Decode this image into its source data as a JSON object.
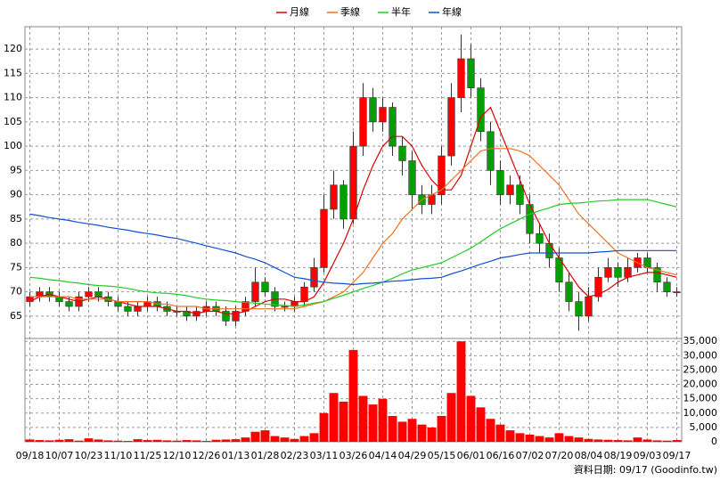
{
  "chart_data": [
    {
      "type": "candlestick",
      "categories": [
        "09/18",
        null,
        null,
        "10/07",
        null,
        null,
        "10/23",
        null,
        null,
        "11/10",
        null,
        null,
        "11/25",
        null,
        null,
        "12/10",
        null,
        null,
        "12/26",
        null,
        null,
        "01/13",
        null,
        null,
        "01/28",
        null,
        null,
        "02/23",
        null,
        null,
        "03/11",
        null,
        null,
        "03/26",
        null,
        null,
        "04/14",
        null,
        null,
        "04/29",
        null,
        null,
        "05/15",
        null,
        null,
        "06/01",
        null,
        null,
        "06/16",
        null,
        null,
        "07/02",
        null,
        null,
        "07/20",
        null,
        null,
        "08/04",
        null,
        null,
        "08/19",
        null,
        null,
        "09/03",
        null,
        null,
        "09/17"
      ],
      "open": [
        68,
        69,
        70,
        69,
        68,
        67,
        69,
        70,
        69,
        68,
        67,
        66,
        67,
        68,
        67,
        66,
        66,
        65,
        66,
        67,
        66,
        64,
        66,
        68,
        72,
        70,
        67,
        67,
        68,
        71,
        75,
        87,
        92,
        85,
        100,
        110,
        105,
        108,
        100,
        97,
        90,
        88,
        90,
        98,
        110,
        118,
        112,
        103,
        95,
        90,
        92,
        88,
        82,
        80,
        77,
        72,
        68,
        65,
        69,
        73,
        75,
        73,
        75,
        77,
        75,
        72,
        70
      ],
      "high": [
        70,
        71,
        71,
        70,
        69,
        70,
        71,
        71,
        70,
        69,
        68,
        68,
        69,
        69,
        68,
        67,
        67,
        67,
        68,
        68,
        67,
        67,
        69,
        75,
        73,
        71,
        68,
        69,
        72,
        77,
        90,
        95,
        93,
        103,
        113,
        112,
        110,
        109,
        102,
        99,
        92,
        92,
        100,
        113,
        123,
        121,
        114,
        105,
        97,
        94,
        94,
        90,
        84,
        82,
        79,
        74,
        70,
        71,
        75,
        77,
        76,
        77,
        78,
        78,
        76,
        73,
        71
      ],
      "low": [
        67,
        68,
        68,
        67,
        66,
        66,
        68,
        68,
        67,
        66,
        65,
        65,
        66,
        66,
        65,
        65,
        64,
        64,
        65,
        65,
        63,
        63,
        65,
        67,
        69,
        66,
        66,
        66,
        67,
        70,
        74,
        85,
        83,
        84,
        98,
        103,
        103,
        98,
        94,
        87,
        86,
        86,
        88,
        96,
        107,
        110,
        101,
        92,
        88,
        88,
        86,
        80,
        78,
        75,
        70,
        66,
        62,
        64,
        68,
        72,
        71,
        72,
        74,
        74,
        70,
        69,
        69
      ],
      "close": [
        69,
        70,
        69,
        68,
        67,
        69,
        70,
        69,
        68,
        67,
        66,
        67,
        68,
        67,
        66,
        66,
        65,
        66,
        67,
        66,
        64,
        66,
        68,
        72,
        70,
        67,
        67,
        68,
        71,
        75,
        87,
        92,
        85,
        100,
        110,
        105,
        108,
        100,
        97,
        90,
        88,
        90,
        98,
        110,
        118,
        112,
        103,
        95,
        90,
        92,
        88,
        82,
        80,
        77,
        72,
        68,
        65,
        69,
        73,
        75,
        73,
        75,
        77,
        75,
        72,
        70,
        70
      ],
      "up_color": "#ff0000",
      "down_color": "#00a000",
      "series": [
        {
          "name": "月線",
          "color": "#dd0000",
          "values": [
            68,
            69,
            69.5,
            69,
            68.5,
            68,
            68.5,
            69,
            68.5,
            68,
            67.5,
            67,
            67,
            67,
            66.5,
            66,
            66,
            65.5,
            66,
            66,
            65.5,
            65.5,
            66,
            67,
            68,
            68.5,
            68.5,
            68,
            68,
            69,
            72,
            76,
            80,
            85,
            91,
            96,
            100,
            102,
            102,
            100,
            96,
            93,
            91,
            91,
            94,
            100,
            106,
            108,
            103,
            98,
            93,
            88,
            84,
            80,
            77,
            74,
            71,
            69,
            69.5,
            70.5,
            72,
            73,
            73.5,
            74,
            74,
            73.5,
            73
          ]
        },
        {
          "name": "季線",
          "color": "#f07020",
          "values": [
            69,
            69,
            69,
            69,
            69,
            68.5,
            68.5,
            68.5,
            68.5,
            68,
            68,
            68,
            68,
            67.5,
            67.5,
            67,
            67,
            67,
            66.5,
            66.5,
            66.5,
            66.5,
            66.5,
            66.5,
            66.5,
            66.5,
            66.5,
            66.5,
            67,
            67.5,
            68,
            69,
            70,
            72,
            74,
            77,
            80,
            82,
            85,
            87,
            89,
            90,
            91,
            93,
            95,
            97,
            99,
            99.5,
            99.5,
            99.5,
            99,
            98,
            96,
            94,
            92,
            89,
            86,
            84,
            82,
            80,
            78,
            77,
            76,
            75,
            74.5,
            74,
            73.5
          ]
        },
        {
          "name": "半年",
          "color": "#22cc22",
          "values": [
            73,
            72.8,
            72.5,
            72.3,
            72,
            71.8,
            71.5,
            71.3,
            71.2,
            71,
            70.7,
            70.3,
            70,
            69.8,
            69.7,
            69.5,
            69.2,
            68.8,
            68.5,
            68.3,
            68.2,
            68,
            67.8,
            67.7,
            67.5,
            67.3,
            67.2,
            67,
            67.3,
            67.7,
            68,
            68.7,
            69.3,
            70,
            70.7,
            71.3,
            72,
            72.8,
            73.7,
            74.5,
            75,
            75.5,
            76,
            77,
            78,
            79,
            80.3,
            81.7,
            83,
            84,
            85,
            86,
            86.7,
            87.3,
            88,
            88.2,
            88.3,
            88.5,
            88.7,
            88.8,
            89,
            89,
            89,
            89,
            88.5,
            88,
            87.5
          ]
        },
        {
          "name": "年線",
          "color": "#1050d0",
          "values": [
            86,
            85.7,
            85.3,
            85,
            84.7,
            84.3,
            84,
            83.7,
            83.3,
            83,
            82.7,
            82.3,
            82,
            81.7,
            81.3,
            81,
            80.5,
            80,
            79.5,
            79,
            78.5,
            78,
            77.3,
            76.7,
            76,
            75,
            74,
            73,
            72.7,
            72.3,
            72,
            71.8,
            71.7,
            71.5,
            71.7,
            71.8,
            72,
            72.2,
            72.3,
            72.5,
            72.7,
            72.8,
            73,
            73.7,
            74.3,
            75,
            75.7,
            76.3,
            77,
            77.3,
            77.7,
            78,
            78,
            78,
            78,
            78,
            78,
            78,
            78.2,
            78.3,
            78.5,
            78.5,
            78.5,
            78.5,
            78.5,
            78.5,
            78.5
          ]
        }
      ],
      "ylim": [
        60.4,
        124.6
      ],
      "yticks": [
        65,
        70,
        75,
        80,
        85,
        90,
        95,
        100,
        105,
        110,
        115,
        120
      ],
      "grid": true
    },
    {
      "type": "bar",
      "values": [
        800,
        600,
        500,
        700,
        900,
        400,
        1200,
        800,
        500,
        400,
        300,
        900,
        600,
        700,
        500,
        400,
        600,
        500,
        300,
        700,
        800,
        900,
        1500,
        3500,
        4000,
        2000,
        1500,
        1000,
        2000,
        3000,
        10000,
        17000,
        14000,
        32000,
        16000,
        13000,
        15000,
        9000,
        7000,
        8000,
        6000,
        5000,
        9000,
        17000,
        35000,
        16000,
        12000,
        8000,
        6000,
        4000,
        3000,
        2500,
        2000,
        1500,
        3000,
        2000,
        1500,
        1000,
        800,
        700,
        600,
        500,
        1500,
        800,
        500,
        400,
        600
      ],
      "color": "#ff0000",
      "ylim": [
        0,
        36000
      ],
      "yticks": [
        0,
        {
          "value": 5000,
          "label": "5,000"
        },
        {
          "value": 10000,
          "label": "10,000"
        },
        {
          "value": 15000,
          "label": "15,000"
        },
        {
          "value": 20000,
          "label": "20,000"
        },
        {
          "value": 25000,
          "label": "25,000"
        },
        {
          "value": 30000,
          "label": "30,000"
        },
        {
          "value": 35000,
          "label": "35,000"
        }
      ],
      "grid": true,
      "source": "資料日期: 09/17 (Goodinfo.tw)"
    }
  ]
}
